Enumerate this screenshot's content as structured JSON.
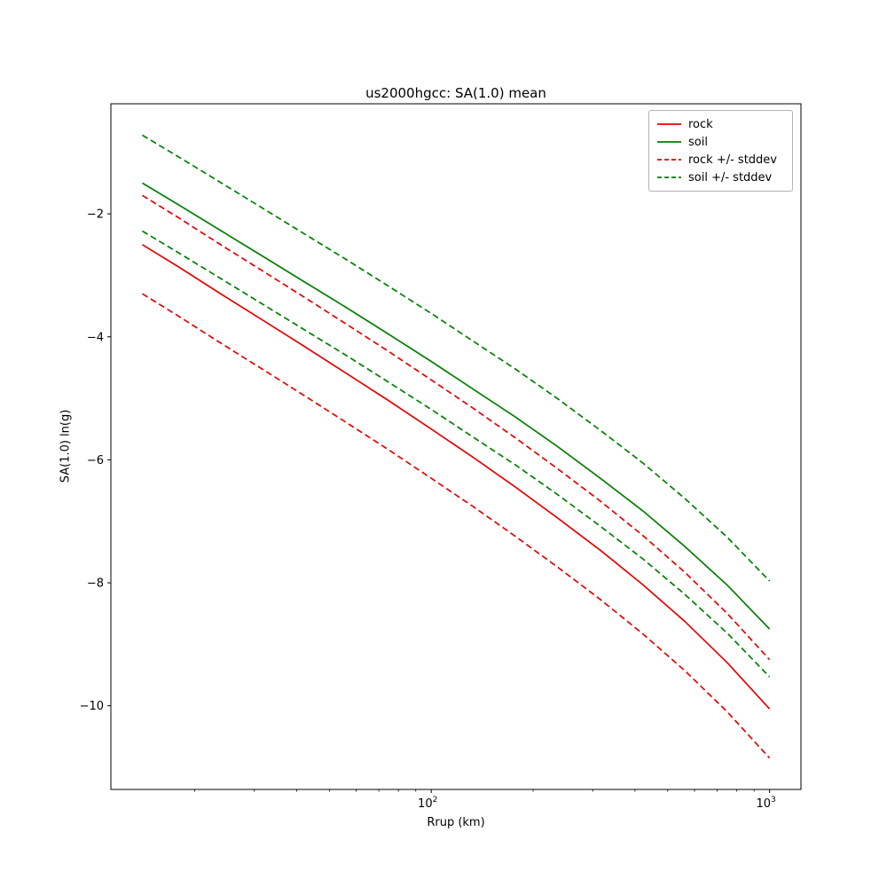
{
  "chart_data": {
    "type": "line",
    "title": "us2000hgcc: SA(1.0) mean",
    "xlabel": "Rrup (km)",
    "ylabel": "SA(1.0) ln(g)",
    "x_scale": "log",
    "grid": false,
    "xlim": [
      11.3,
      1238
    ],
    "ylim": [
      -11.36,
      -0.21
    ],
    "x": [
      14,
      18,
      24,
      32,
      42,
      56,
      75,
      100,
      133,
      178,
      237,
      316,
      422,
      562,
      750,
      1000
    ],
    "series": [
      {
        "id": "rock-mean",
        "name": "rock",
        "color": "#e50000",
        "style": "solid",
        "values": [
          -2.5,
          -2.87,
          -3.31,
          -3.74,
          -4.15,
          -4.59,
          -5.04,
          -5.5,
          -5.96,
          -6.45,
          -6.95,
          -7.47,
          -8.03,
          -8.63,
          -9.3,
          -10.05
        ]
      },
      {
        "id": "soil-mean",
        "name": "soil",
        "color": "#007f00",
        "style": "solid",
        "values": [
          -1.5,
          -1.86,
          -2.28,
          -2.7,
          -3.1,
          -3.52,
          -3.96,
          -4.4,
          -4.85,
          -5.31,
          -5.79,
          -6.3,
          -6.83,
          -7.41,
          -8.04,
          -8.75
        ]
      },
      {
        "id": "rock-plus-stddev",
        "name": "rock +/- stddev",
        "color": "#e50000",
        "style": "dashed",
        "values": [
          -1.7,
          -2.07,
          -2.51,
          -2.94,
          -3.35,
          -3.79,
          -4.24,
          -4.7,
          -5.16,
          -5.65,
          -6.15,
          -6.67,
          -7.23,
          -7.83,
          -8.5,
          -9.25
        ]
      },
      {
        "id": "rock-minus-stddev",
        "name": "rock +/- stddev",
        "color": "#e50000",
        "style": "dashed",
        "values": [
          -3.3,
          -3.67,
          -4.11,
          -4.54,
          -4.95,
          -5.39,
          -5.84,
          -6.3,
          -6.76,
          -7.25,
          -7.75,
          -8.27,
          -8.83,
          -9.43,
          -10.1,
          -10.85
        ]
      },
      {
        "id": "soil-plus-stddev",
        "name": "soil +/- stddev",
        "color": "#007f00",
        "style": "dashed",
        "values": [
          -0.72,
          -1.08,
          -1.5,
          -1.92,
          -2.32,
          -2.74,
          -3.18,
          -3.62,
          -4.07,
          -4.53,
          -5.01,
          -5.52,
          -6.05,
          -6.63,
          -7.26,
          -7.97
        ]
      },
      {
        "id": "soil-minus-stddev",
        "name": "soil +/- stddev",
        "color": "#007f00",
        "style": "dashed",
        "values": [
          -2.28,
          -2.64,
          -3.06,
          -3.48,
          -3.88,
          -4.3,
          -4.74,
          -5.18,
          -5.63,
          -6.09,
          -6.57,
          -7.08,
          -7.61,
          -8.19,
          -8.82,
          -9.53
        ]
      }
    ],
    "y_ticks": [
      {
        "value": -2,
        "label": "−2"
      },
      {
        "value": -4,
        "label": "−4"
      },
      {
        "value": -6,
        "label": "−6"
      },
      {
        "value": -8,
        "label": "−8"
      },
      {
        "value": -10,
        "label": "−10"
      }
    ],
    "x_ticks": [
      {
        "value": 100,
        "label": "10²",
        "base": "10",
        "exp": "2"
      },
      {
        "value": 1000,
        "label": "10³",
        "base": "10",
        "exp": "3"
      }
    ],
    "legend": {
      "position": "upper right",
      "entries": [
        {
          "label": "rock",
          "color": "#e50000",
          "style": "solid"
        },
        {
          "label": "soil",
          "color": "#007f00",
          "style": "solid"
        },
        {
          "label": "rock +/- stddev",
          "color": "#e50000",
          "style": "dashed"
        },
        {
          "label": "soil +/- stddev",
          "color": "#007f00",
          "style": "dashed"
        }
      ]
    }
  }
}
